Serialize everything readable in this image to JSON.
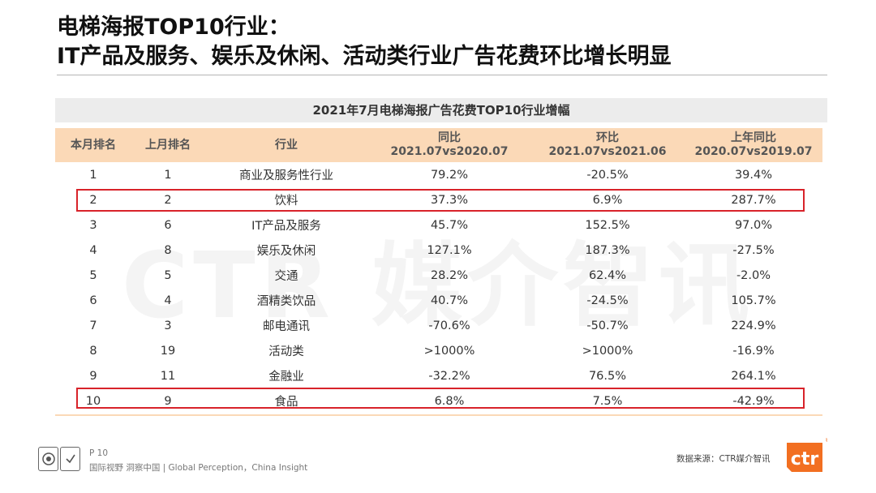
{
  "title": {
    "line1": "电梯海报TOP10行业：",
    "line2": "IT产品及服务、娱乐及休闲、活动类行业广告花费环比增长明显"
  },
  "watermark": "CTR 媒介智讯",
  "table": {
    "caption": "2021年7月电梯海报广告花费TOP10行业增幅",
    "headers": [
      {
        "line1": "本月排名",
        "line2": ""
      },
      {
        "line1": "上月排名",
        "line2": ""
      },
      {
        "line1": "行业",
        "line2": ""
      },
      {
        "line1": "同比",
        "line2": "2021.07vs2020.07"
      },
      {
        "line1": "环比",
        "line2": "2021.07vs2021.06"
      },
      {
        "line1": "上年同比",
        "line2": "2020.07vs2019.07"
      }
    ],
    "rows": [
      [
        "1",
        "1",
        "商业及服务性行业",
        "79.2%",
        "-20.5%",
        "39.4%"
      ],
      [
        "2",
        "2",
        "饮料",
        "37.3%",
        "6.9%",
        "287.7%"
      ],
      [
        "3",
        "6",
        "IT产品及服务",
        "45.7%",
        "152.5%",
        "97.0%"
      ],
      [
        "4",
        "8",
        "娱乐及休闲",
        "127.1%",
        "187.3%",
        "-27.5%"
      ],
      [
        "5",
        "5",
        "交通",
        "28.2%",
        "62.4%",
        "-2.0%"
      ],
      [
        "6",
        "4",
        "酒精类饮品",
        "40.7%",
        "-24.5%",
        "105.7%"
      ],
      [
        "7",
        "3",
        "邮电通讯",
        "-70.6%",
        "-50.7%",
        "224.9%"
      ],
      [
        "8",
        "19",
        "活动类",
        ">1000%",
        ">1000%",
        "-16.9%"
      ],
      [
        "9",
        "11",
        "金融业",
        "-32.2%",
        "76.5%",
        "264.1%"
      ],
      [
        "10",
        "9",
        "食品",
        "6.8%",
        "7.5%",
        "-42.9%"
      ]
    ]
  },
  "footer": {
    "page": "P 10",
    "slogan": "国际视野  洞察中国 | Global Perception，China Insight",
    "source": "数据来源：CTR媒介智讯",
    "logo_text": "ctr",
    "registered_mark": "®"
  },
  "colors": {
    "header_bg": "#fbd9b7",
    "highlight": "#d8232a",
    "brand_orange": "#f26f21"
  }
}
